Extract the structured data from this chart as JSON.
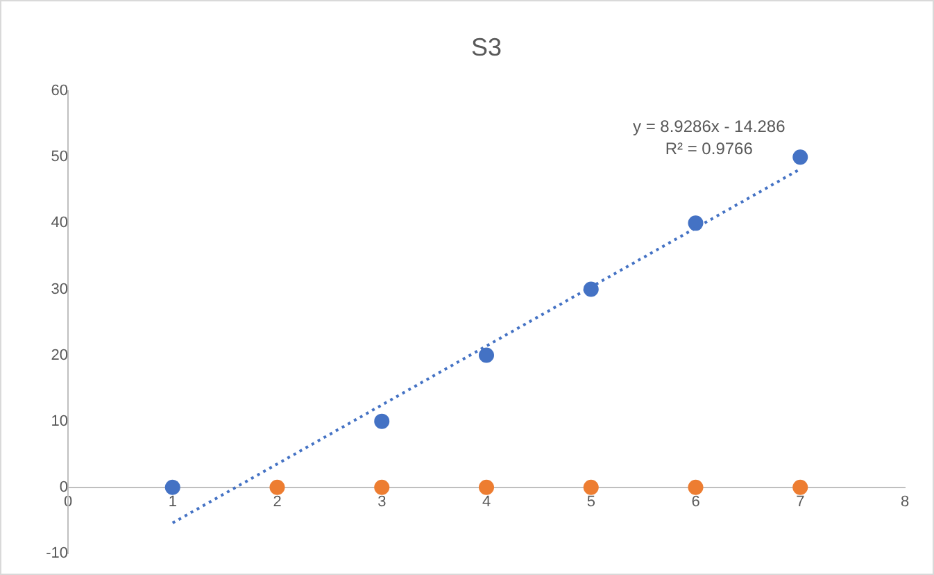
{
  "chart_data": {
    "type": "scatter",
    "title": "S3",
    "series": [
      {
        "color": "#4472c4",
        "x": [
          1,
          2,
          3,
          4,
          5,
          6,
          7
        ],
        "values": [
          0,
          null,
          10,
          20,
          30,
          40,
          50
        ]
      },
      {
        "color": "#ed7d31",
        "x": [
          2,
          3,
          4,
          5,
          6,
          7
        ],
        "values": [
          0,
          0,
          0,
          0,
          0,
          0
        ]
      },
      {
        "type": "line",
        "color": "#4472c4",
        "line_style": "dotted",
        "marker": "none",
        "x": [
          1,
          7
        ],
        "values": [
          -5.4,
          48.2
        ]
      }
    ],
    "xlim": [
      0,
      8
    ],
    "xticks": [
      0,
      1,
      2,
      3,
      4,
      5,
      6,
      7,
      8
    ],
    "ylim": [
      -10,
      60
    ],
    "yticks": [
      -10,
      0,
      10,
      20,
      30,
      40,
      50,
      60
    ],
    "grid": false,
    "legend": false,
    "marker": "circle",
    "annotations": [
      "y = 8.9286x - 14.286",
      "R² = 0.9766"
    ]
  }
}
